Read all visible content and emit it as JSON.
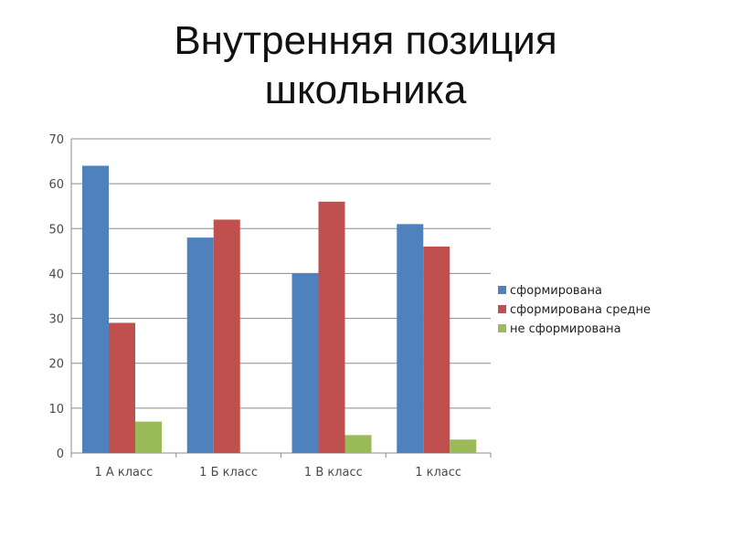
{
  "slide": {
    "title_line1": "Внутренняя позиция",
    "title_line2": "школьника"
  },
  "chart_data": {
    "type": "bar",
    "title": "",
    "xlabel": "",
    "ylabel": "",
    "categories": [
      "1 А класс",
      "1 Б класс",
      "1 В класс",
      "1 класс"
    ],
    "series": [
      {
        "name": "сформирована",
        "color": "#4f81bd",
        "values": [
          64,
          48,
          40,
          51
        ]
      },
      {
        "name": "сформирована средне",
        "color": "#c0504d",
        "values": [
          29,
          52,
          56,
          46
        ]
      },
      {
        "name": "не сформирована",
        "color": "#9bbb59",
        "values": [
          7,
          0,
          4,
          3
        ]
      }
    ],
    "ylim": [
      0,
      70
    ],
    "yticks": [
      0,
      10,
      20,
      30,
      40,
      50,
      60,
      70
    ],
    "grid": true,
    "legend": "right"
  }
}
